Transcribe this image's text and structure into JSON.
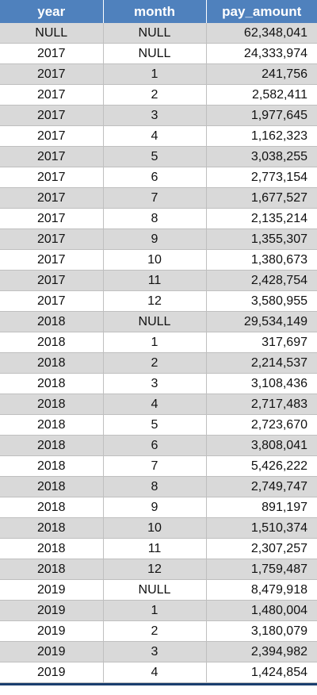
{
  "table": {
    "headers": [
      "year",
      "month",
      "pay_amount"
    ],
    "rows": [
      [
        "NULL",
        "NULL",
        "62,348,041"
      ],
      [
        "2017",
        "NULL",
        "24,333,974"
      ],
      [
        "2017",
        "1",
        "241,756"
      ],
      [
        "2017",
        "2",
        "2,582,411"
      ],
      [
        "2017",
        "3",
        "1,977,645"
      ],
      [
        "2017",
        "4",
        "1,162,323"
      ],
      [
        "2017",
        "5",
        "3,038,255"
      ],
      [
        "2017",
        "6",
        "2,773,154"
      ],
      [
        "2017",
        "7",
        "1,677,527"
      ],
      [
        "2017",
        "8",
        "2,135,214"
      ],
      [
        "2017",
        "9",
        "1,355,307"
      ],
      [
        "2017",
        "10",
        "1,380,673"
      ],
      [
        "2017",
        "11",
        "2,428,754"
      ],
      [
        "2017",
        "12",
        "3,580,955"
      ],
      [
        "2018",
        "NULL",
        "29,534,149"
      ],
      [
        "2018",
        "1",
        "317,697"
      ],
      [
        "2018",
        "2",
        "2,214,537"
      ],
      [
        "2018",
        "3",
        "3,108,436"
      ],
      [
        "2018",
        "4",
        "2,717,483"
      ],
      [
        "2018",
        "5",
        "2,723,670"
      ],
      [
        "2018",
        "6",
        "3,808,041"
      ],
      [
        "2018",
        "7",
        "5,426,222"
      ],
      [
        "2018",
        "8",
        "2,749,747"
      ],
      [
        "2018",
        "9",
        "891,197"
      ],
      [
        "2018",
        "10",
        "1,510,374"
      ],
      [
        "2018",
        "11",
        "2,307,257"
      ],
      [
        "2018",
        "12",
        "1,759,487"
      ],
      [
        "2019",
        "NULL",
        "8,479,918"
      ],
      [
        "2019",
        "1",
        "1,480,004"
      ],
      [
        "2019",
        "2",
        "3,180,079"
      ],
      [
        "2019",
        "3",
        "2,394,982"
      ],
      [
        "2019",
        "4",
        "1,424,854"
      ]
    ]
  },
  "colors": {
    "header_bg": "#4f81bd",
    "header_text": "#ffffff",
    "band_gray": "#d9d9d9",
    "band_white": "#ffffff"
  }
}
